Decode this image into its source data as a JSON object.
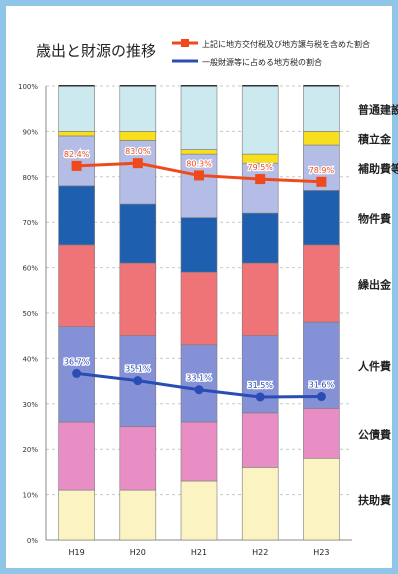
{
  "chart_data": {
    "type": "bar",
    "stacked": true,
    "title": "歳出と財源の推移",
    "categories": [
      "H19",
      "H20",
      "H21",
      "H22",
      "H23"
    ],
    "y_ticks": [
      "0%",
      "10%",
      "20%",
      "30%",
      "40%",
      "50%",
      "60%",
      "70%",
      "80%",
      "90%",
      "100%"
    ],
    "ylim": [
      0,
      100
    ],
    "grid": true,
    "legend_position": "top-right",
    "series": [
      {
        "name": "扶助費",
        "color": "#fbf3c2",
        "values": [
          11,
          11,
          13,
          16,
          18
        ]
      },
      {
        "name": "公債費",
        "color": "#e88ec4",
        "values": [
          15,
          14,
          13,
          12,
          11
        ]
      },
      {
        "name": "人件費",
        "color": "#8591d6",
        "values": [
          21,
          20,
          17,
          17,
          19
        ]
      },
      {
        "name": "繰出金",
        "color": "#ef7478",
        "values": [
          18,
          16,
          16,
          16,
          17
        ]
      },
      {
        "name": "物件費",
        "color": "#1f5fb0",
        "values": [
          13,
          13,
          12,
          11,
          12
        ]
      },
      {
        "name": "補助費等",
        "color": "#b3bde6",
        "values": [
          11,
          14,
          14,
          11,
          10
        ]
      },
      {
        "name": "積立金",
        "color": "#f8df1e",
        "values": [
          1,
          2,
          1,
          2,
          3
        ]
      },
      {
        "name": "普通建設",
        "color": "#cde9f0",
        "values": [
          10,
          10,
          14,
          15,
          10
        ]
      }
    ],
    "lines": [
      {
        "name": "上記に地方交付税及び地方譲与税を含めた割合",
        "color": "#f04a1c",
        "values": [
          82.4,
          83.0,
          80.3,
          79.5,
          78.9
        ],
        "labels": [
          "82.4%",
          "83.0%",
          "80.3%",
          "79.5%",
          "78.9%"
        ]
      },
      {
        "name": "一般財源等に占める地方税の割合",
        "color": "#2a4cb5",
        "values": [
          36.7,
          35.1,
          33.1,
          31.5,
          31.6
        ],
        "labels": [
          "36.7%",
          "35.1%",
          "33.1%",
          "31.5%",
          "31.6%"
        ]
      }
    ]
  }
}
